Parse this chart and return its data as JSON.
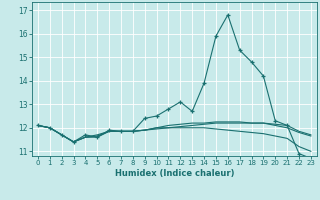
{
  "xlabel": "Humidex (Indice chaleur)",
  "ylabel": "",
  "background_color": "#c8eaea",
  "grid_color": "#ffffff",
  "line_color": "#1a7070",
  "xlim": [
    -0.5,
    23.5
  ],
  "ylim": [
    10.8,
    17.35
  ],
  "yticks": [
    11,
    12,
    13,
    14,
    15,
    16,
    17
  ],
  "xticks": [
    0,
    1,
    2,
    3,
    4,
    5,
    6,
    7,
    8,
    9,
    10,
    11,
    12,
    13,
    14,
    15,
    16,
    17,
    18,
    19,
    20,
    21,
    22,
    23
  ],
  "x": [
    0,
    1,
    2,
    3,
    4,
    5,
    6,
    7,
    8,
    9,
    10,
    11,
    12,
    13,
    14,
    15,
    16,
    17,
    18,
    19,
    20,
    21,
    22,
    23
  ],
  "line1": [
    12.1,
    12.0,
    11.7,
    11.4,
    11.7,
    11.6,
    11.9,
    11.85,
    11.85,
    12.4,
    12.5,
    12.8,
    13.1,
    12.7,
    13.9,
    15.9,
    16.8,
    15.3,
    14.8,
    14.2,
    12.3,
    12.1,
    10.9,
    10.7
  ],
  "line2": [
    12.1,
    12.0,
    11.7,
    11.4,
    11.6,
    11.7,
    11.85,
    11.85,
    11.85,
    11.9,
    12.0,
    12.0,
    12.05,
    12.1,
    12.15,
    12.2,
    12.2,
    12.2,
    12.2,
    12.2,
    12.1,
    12.0,
    11.8,
    11.65
  ],
  "line3": [
    12.1,
    12.0,
    11.7,
    11.4,
    11.6,
    11.6,
    11.85,
    11.85,
    11.85,
    11.9,
    11.95,
    12.0,
    12.0,
    12.0,
    12.0,
    11.95,
    11.9,
    11.85,
    11.8,
    11.75,
    11.65,
    11.55,
    11.2,
    11.0
  ],
  "line4": [
    12.1,
    12.0,
    11.7,
    11.4,
    11.6,
    11.65,
    11.85,
    11.85,
    11.85,
    11.9,
    12.0,
    12.1,
    12.15,
    12.2,
    12.2,
    12.25,
    12.25,
    12.25,
    12.2,
    12.2,
    12.15,
    12.1,
    11.85,
    11.7
  ]
}
